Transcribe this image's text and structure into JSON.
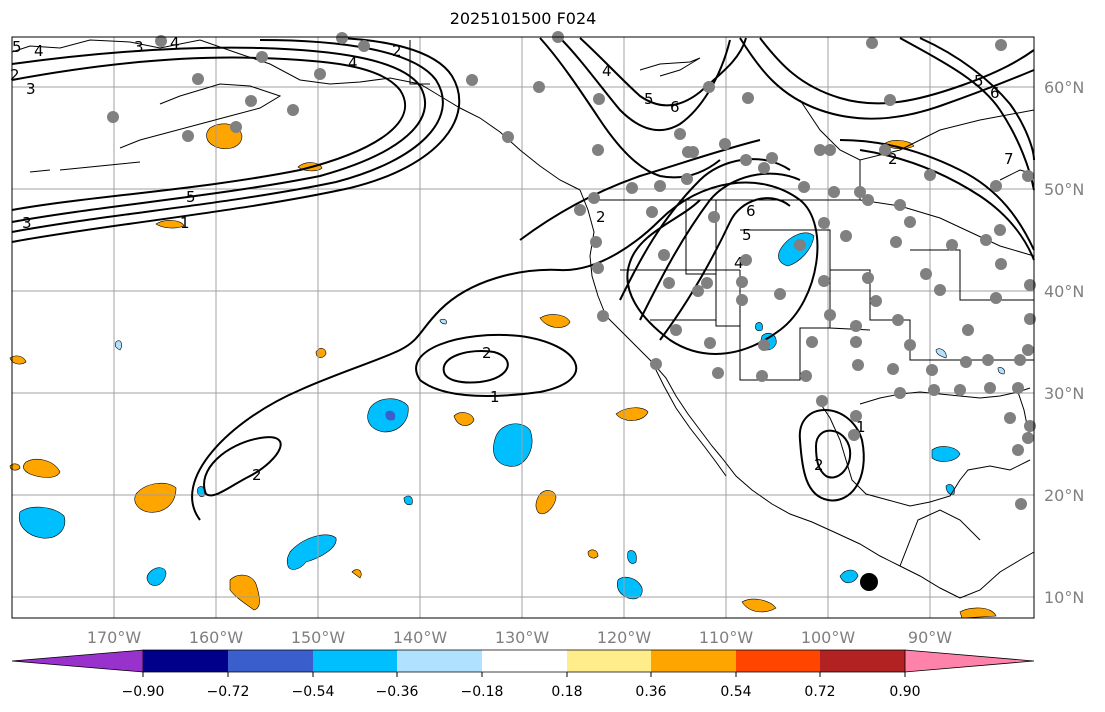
{
  "title": "2025101500 F024",
  "map": {
    "projection": "cylindrical",
    "lon_range": [
      -180,
      -80
    ],
    "lat_range": [
      8,
      65
    ],
    "lat_labels": [
      {
        "lat": 60,
        "text": "60°N"
      },
      {
        "lat": 50,
        "text": "50°N"
      },
      {
        "lat": 40,
        "text": "40°N"
      },
      {
        "lat": 30,
        "text": "30°N"
      },
      {
        "lat": 20,
        "text": "20°N"
      },
      {
        "lat": 10,
        "text": "10°N"
      }
    ],
    "lon_labels": [
      {
        "lon": -170,
        "text": "170°W"
      },
      {
        "lon": -160,
        "text": "160°W"
      },
      {
        "lon": -150,
        "text": "150°W"
      },
      {
        "lon": -140,
        "text": "140°W"
      },
      {
        "lon": -130,
        "text": "130°W"
      },
      {
        "lon": -120,
        "text": "120°W"
      },
      {
        "lon": -110,
        "text": "110°W"
      },
      {
        "lon": -100,
        "text": "100°W"
      },
      {
        "lon": -90,
        "text": "90°W"
      }
    ],
    "contour_labels": [
      "5",
      "4",
      "3",
      "2",
      "4",
      "4",
      "3",
      "6",
      "5",
      "4",
      "3",
      "1",
      "5",
      "6",
      "7",
      "6",
      "5",
      "5",
      "2",
      "4",
      "2",
      "2",
      "1",
      "2",
      "2",
      "1",
      "2"
    ],
    "station_marker_color": "#808080",
    "highlight_marker_color": "#000000"
  },
  "colorbar": {
    "colors": [
      "#9932cc",
      "#00008b",
      "#3a5fcd",
      "#00bfff",
      "#b0e2ff",
      "#ffffff",
      "#ffec8b",
      "#ffa500",
      "#ff4500",
      "#b22222",
      "#ff82ab"
    ],
    "tick_labels": [
      "−0.90",
      "−0.72",
      "−0.54",
      "−0.36",
      "−0.18",
      "0.18",
      "0.36",
      "0.54",
      "0.72",
      "0.90"
    ]
  }
}
